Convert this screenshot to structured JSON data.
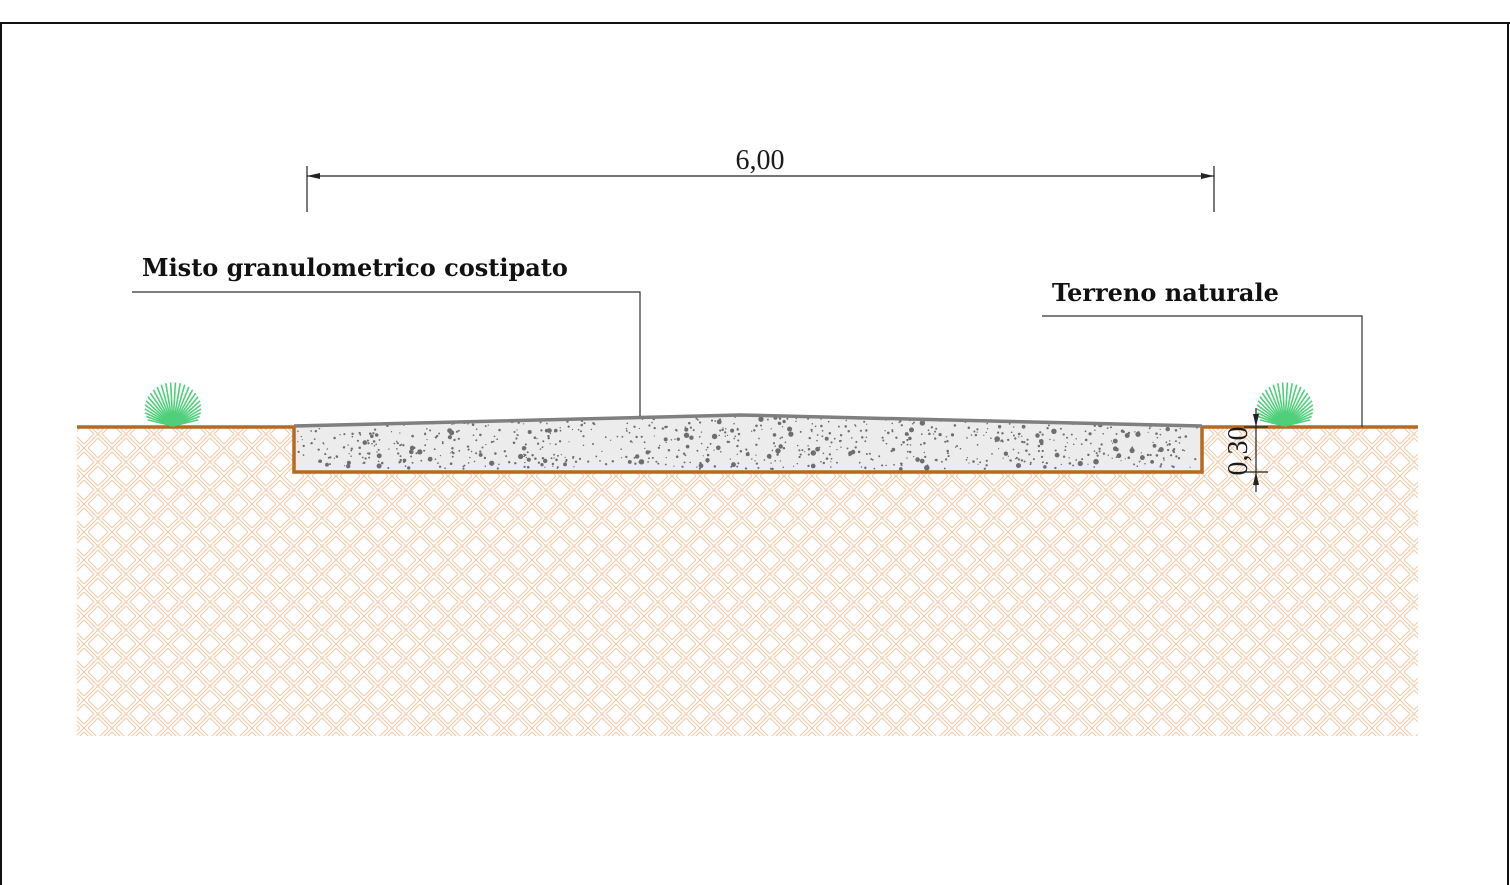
{
  "labels": {
    "aggregate_layer": "Misto granulometrico costipato",
    "natural_ground": "Terreno naturale"
  },
  "dimensions": {
    "width": "6,00",
    "depth": "0,30"
  },
  "colors": {
    "frame": "#111111",
    "ground_line": "#b86a1e",
    "soil_hatch": "#f2c9a6",
    "aggregate_fill": "#ebebeb",
    "aggregate_dots": "#6e6e6e",
    "crown_line": "#808080",
    "grass": "#4fcf7a"
  },
  "icons": {
    "left_plant": "grass-tuft-icon",
    "right_plant": "grass-tuft-icon"
  }
}
